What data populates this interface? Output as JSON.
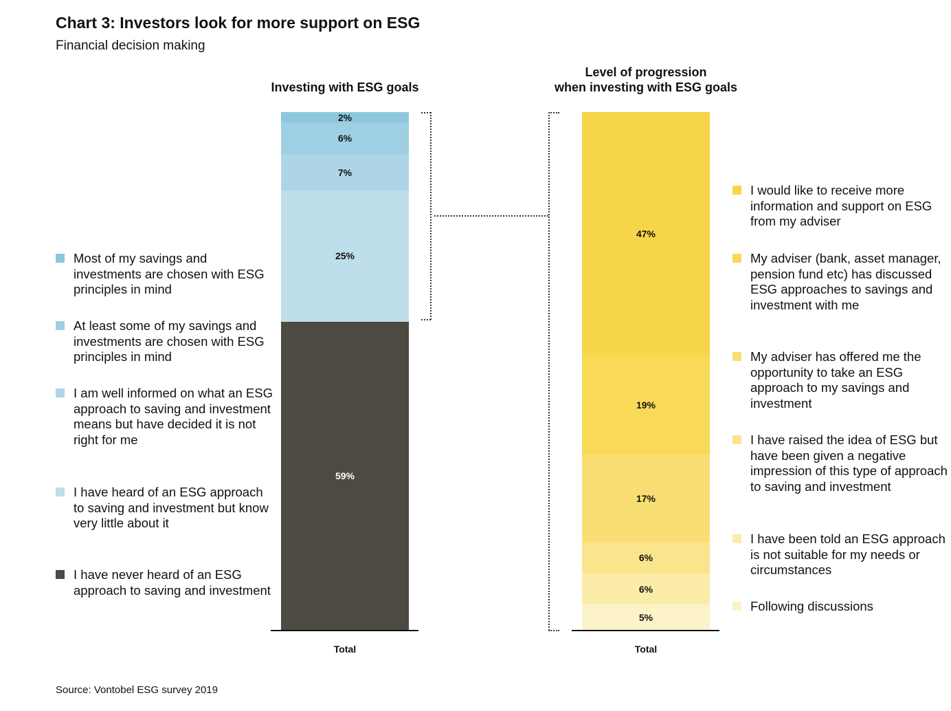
{
  "chart_data": [
    {
      "type": "bar",
      "stacked": true,
      "title": "Investing with ESG goals",
      "categories": [
        "Total"
      ],
      "ylim": [
        0,
        99
      ],
      "series": [
        {
          "name": "Most of my savings and investments are chosen with ESG principles in mind",
          "values": [
            2
          ],
          "label": "2%",
          "color": "#8cc8dc"
        },
        {
          "name": "At least some of my savings and investments are chosen with ESG principles in mind",
          "values": [
            6
          ],
          "label": "6%",
          "color": "#9ecfe3"
        },
        {
          "name": "I am well informed on what an ESG approach to saving and investment means but have decided it is not right for me",
          "values": [
            7
          ],
          "label": "7%",
          "color": "#aed5e6"
        },
        {
          "name": "I have heard of an ESG approach to saving and investment but know very little about it",
          "values": [
            25
          ],
          "label": "25%",
          "color": "#bfdeeb"
        },
        {
          "name": "I have never heard of an ESG approach to saving and investment",
          "values": [
            59
          ],
          "label": "59%",
          "color": "#4d4a42",
          "label_color": "#ffffff"
        }
      ]
    },
    {
      "type": "bar",
      "stacked": true,
      "title": "Level of progression when investing with ESG goals",
      "categories": [
        "Total"
      ],
      "ylim": [
        0,
        100
      ],
      "series": [
        {
          "name": "I would like to receive more information and support on ESG from my adviser",
          "values": [
            47
          ],
          "label": "47%",
          "color": "#f7d548"
        },
        {
          "name": "My adviser (bank, asset manager, pension fund etc) has discussed ESG approaches to savings and investment with me",
          "values": [
            19
          ],
          "label": "19%",
          "color": "#f8da58"
        },
        {
          "name": "My adviser has offered me the opportunity to take an ESG approach to my savings and investment",
          "values": [
            17
          ],
          "label": "17%",
          "color": "#f9df73"
        },
        {
          "name": "I have raised the idea of ESG but have been given a negative impression of this type of approach to saving and investment",
          "values": [
            6
          ],
          "label": "6%",
          "color": "#fae58d"
        },
        {
          "name": "I have been told an ESG approach is not suitable for my needs or circumstances",
          "values": [
            6
          ],
          "label": "6%",
          "color": "#fcecaa"
        },
        {
          "name": "Following discussions",
          "values": [
            5
          ],
          "label": "5%",
          "color": "#fdf3c8"
        }
      ]
    }
  ],
  "header": {
    "title": "Chart 3: Investors look for more support on ESG",
    "subtitle": "Financial decision making"
  },
  "panels": {
    "left_title": "Investing with ESG goals",
    "right_title_1": "Level of progression",
    "right_title_2": "when investing with ESG goals",
    "left_x": "Total",
    "right_x": "Total"
  },
  "source": "Source: Vontobel ESG survey 2019"
}
